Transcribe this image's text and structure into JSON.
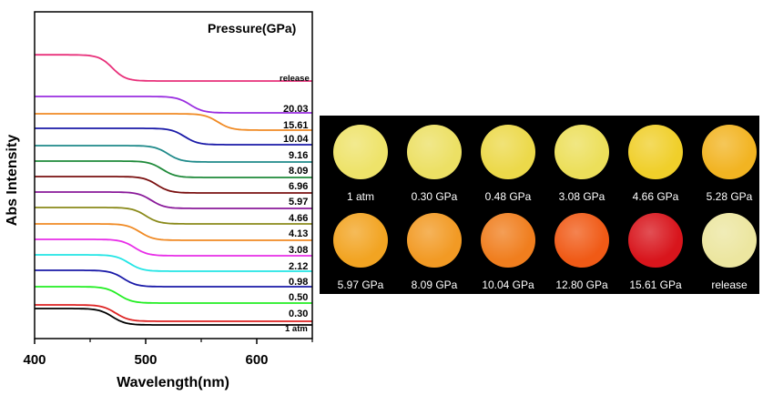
{
  "chart_data": {
    "type": "line",
    "title": "",
    "xlabel": "Wavelength(nm)",
    "ylabel": "Abs Intensity",
    "xlim": [
      400,
      650
    ],
    "xticks": [
      "400",
      "500",
      "600"
    ],
    "legend_title": "Pressure(GPa)",
    "grid": false,
    "series": [
      {
        "name": "1 atm",
        "color": "#000000",
        "edge": 470,
        "top": 0.4,
        "bottom": 0.0
      },
      {
        "name": "0.30",
        "color": "#dd2222",
        "edge": 473,
        "top": 0.4,
        "bottom": 0.0
      },
      {
        "name": "0.50",
        "color": "#22ee22",
        "edge": 476,
        "top": 0.4,
        "bottom": 0.0
      },
      {
        "name": "0.98",
        "color": "#1a1aa8",
        "edge": 480,
        "top": 0.4,
        "bottom": 0.0
      },
      {
        "name": "2.12",
        "color": "#22e5e5",
        "edge": 485,
        "top": 0.4,
        "bottom": 0.0
      },
      {
        "name": "3.08",
        "color": "#e82ee8",
        "edge": 490,
        "top": 0.4,
        "bottom": 0.0
      },
      {
        "name": "4.13",
        "color": "#f08a24",
        "edge": 495,
        "top": 0.4,
        "bottom": 0.0
      },
      {
        "name": "4.66",
        "color": "#8a8a1a",
        "edge": 500,
        "top": 0.4,
        "bottom": 0.0
      },
      {
        "name": "5.97",
        "color": "#8a1a9a",
        "edge": 505,
        "top": 0.4,
        "bottom": 0.0
      },
      {
        "name": "6.96",
        "color": "#7a1010",
        "edge": 510,
        "top": 0.4,
        "bottom": 0.0
      },
      {
        "name": "8.09",
        "color": "#1f8a3a",
        "edge": 515,
        "top": 0.4,
        "bottom": 0.0
      },
      {
        "name": "9.16",
        "color": "#1f8a8a",
        "edge": 520,
        "top": 0.4,
        "bottom": 0.0
      },
      {
        "name": "10.04",
        "color": "#1a1aa8",
        "edge": 535,
        "top": 0.4,
        "bottom": 0.0
      },
      {
        "name": "15.61",
        "color": "#f08a24",
        "edge": 565,
        "top": 0.4,
        "bottom": 0.0
      },
      {
        "name": "20.03",
        "color": "#9a2ee0",
        "edge": 540,
        "top": 0.4,
        "bottom": 0.0
      },
      {
        "name": "release",
        "color": "#e8307a",
        "edge": 470,
        "top": 0.4,
        "bottom": 0.0
      }
    ]
  },
  "photos": [
    {
      "label": "1 atm",
      "color": "#eee36a"
    },
    {
      "label": "0.30 GPa",
      "color": "#ece064"
    },
    {
      "label": "0.48 GPa",
      "color": "#ecd94a"
    },
    {
      "label": "3.08 GPa",
      "color": "#ecdf5a"
    },
    {
      "label": "4.66 GPa",
      "color": "#f0cf2a"
    },
    {
      "label": "5.28 GPa",
      "color": "#f2b422"
    },
    {
      "label": "5.97 GPa",
      "color": "#f2a422"
    },
    {
      "label": "8.09 GPa",
      "color": "#f29a24"
    },
    {
      "label": "10.04 GPa",
      "color": "#f07e1e"
    },
    {
      "label": "12.80 GPa",
      "color": "#f05a16"
    },
    {
      "label": "15.61 GPa",
      "color": "#d8151c"
    },
    {
      "label": "release",
      "color": "#ece6a0"
    }
  ]
}
